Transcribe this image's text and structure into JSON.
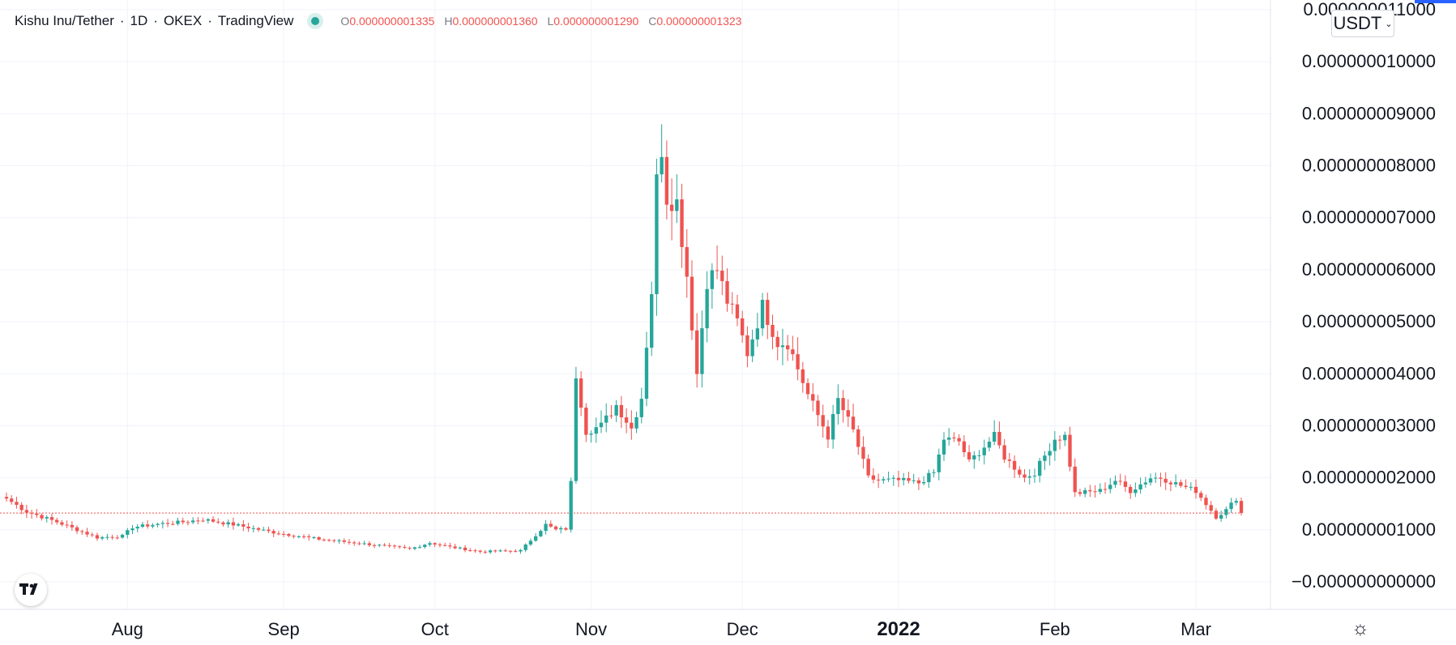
{
  "legend": {
    "symbol": "Kishu Inu/Tether",
    "interval": "1D",
    "exchange": "OKEX",
    "source": "TradingView",
    "ohlc": {
      "o_label": "O",
      "o_value": "0.000000001335",
      "h_label": "H",
      "h_value": "0.000000001360",
      "l_label": "L",
      "l_value": "0.000000001290",
      "c_label": "C",
      "c_value": "0.000000001323"
    }
  },
  "currency_selector": {
    "label": "USDT",
    "chevron": "⌄"
  },
  "icons": {
    "logo": "tradingview-logo-icon",
    "settings": "settings-gear-icon",
    "settings_glyph": "☼"
  },
  "colors": {
    "up": "#26a69a",
    "down": "#ef5350",
    "grid": "#f0f3fa",
    "axis_text": "#131722",
    "last_price_line": "#ef5350"
  },
  "chart_data": {
    "type": "candlestick",
    "symbol": "Kishu Inu/Tether",
    "interval": "1D",
    "exchange": "OKEX",
    "quote_currency": "USDT",
    "y_axis": {
      "ticks": [
        0.0,
        1e-09,
        2e-09,
        3e-09,
        4e-09,
        5e-09,
        6e-09,
        7e-09,
        8e-09,
        9e-09,
        1e-08,
        1.1e-08
      ],
      "tick_labels": [
        "−0.000000000000",
        "0.000000001000",
        "0.000000002000",
        "0.000000003000",
        "0.000000004000",
        "0.000000005000",
        "0.000000006000",
        "0.000000007000",
        "0.000000008000",
        "0.000000009000",
        "0.000000010000",
        "0.000000011000"
      ],
      "ylim": [
        -2e-10,
        1.105e-08
      ]
    },
    "x_axis": {
      "tick_labels": [
        "Aug",
        "Sep",
        "Oct",
        "Nov",
        "Dec",
        "2022",
        "Feb",
        "Mar"
      ],
      "tick_dates": [
        "2021-08-01",
        "2021-09-01",
        "2021-10-01",
        "2021-11-01",
        "2021-12-01",
        "2022-01-01",
        "2022-02-01",
        "2022-03-01"
      ],
      "bold_label": "2022",
      "first_date": "2021-07-08",
      "last_date": "2022-03-10"
    },
    "last_price": 1.323e-09,
    "grid": true,
    "anchors": [
      [
        "2021-07-08",
        1.6
      ],
      [
        "2021-07-12",
        1.35
      ],
      [
        "2021-07-18",
        1.15
      ],
      [
        "2021-07-26",
        0.85
      ],
      [
        "2021-07-31",
        0.88
      ],
      [
        "2021-08-02",
        1.05
      ],
      [
        "2021-08-08",
        1.12
      ],
      [
        "2021-08-12",
        1.15
      ],
      [
        "2021-08-16",
        1.2
      ],
      [
        "2021-08-22",
        1.1
      ],
      [
        "2021-08-30",
        0.95
      ],
      [
        "2021-09-08",
        0.82
      ],
      [
        "2021-09-20",
        0.7
      ],
      [
        "2021-09-26",
        0.63
      ],
      [
        "2021-09-30",
        0.75
      ],
      [
        "2021-10-04",
        0.67
      ],
      [
        "2021-10-10",
        0.58
      ],
      [
        "2021-10-18",
        0.6
      ],
      [
        "2021-10-20",
        0.8
      ],
      [
        "2021-10-23",
        1.1
      ],
      [
        "2021-10-25",
        1.0
      ],
      [
        "2021-10-27",
        1.02
      ],
      [
        "2021-10-28",
        1.9
      ],
      [
        "2021-10-29",
        3.99
      ],
      [
        "2021-10-31",
        2.9
      ],
      [
        "2021-11-03",
        3.0
      ],
      [
        "2021-11-06",
        3.4
      ],
      [
        "2021-11-09",
        2.95
      ],
      [
        "2021-11-11",
        3.55
      ],
      [
        "2021-11-13",
        5.6
      ],
      [
        "2021-11-14",
        7.7
      ],
      [
        "2021-11-15",
        8.35
      ],
      [
        "2021-11-16",
        7.4
      ],
      [
        "2021-11-18",
        7.3
      ],
      [
        "2021-11-20",
        5.9
      ],
      [
        "2021-11-22",
        4.0
      ],
      [
        "2021-11-24",
        5.8
      ],
      [
        "2021-11-26",
        6.0
      ],
      [
        "2021-11-28",
        5.4
      ],
      [
        "2021-11-30",
        5.0
      ],
      [
        "2021-12-02",
        4.4
      ],
      [
        "2021-12-05",
        5.3
      ],
      [
        "2021-12-08",
        4.6
      ],
      [
        "2021-12-10",
        4.6
      ],
      [
        "2021-12-14",
        3.6
      ],
      [
        "2021-12-18",
        2.8
      ],
      [
        "2021-12-20",
        3.5
      ],
      [
        "2021-12-23",
        2.9
      ],
      [
        "2021-12-26",
        2.0
      ],
      [
        "2021-12-28",
        1.95
      ],
      [
        "2022-01-01",
        1.95
      ],
      [
        "2022-01-05",
        1.9
      ],
      [
        "2022-01-08",
        2.1
      ],
      [
        "2022-01-10",
        2.75
      ],
      [
        "2022-01-13",
        2.7
      ],
      [
        "2022-01-15",
        2.3
      ],
      [
        "2022-01-20",
        2.8
      ],
      [
        "2022-01-22",
        2.4
      ],
      [
        "2022-01-26",
        2.0
      ],
      [
        "2022-01-28",
        2.1
      ],
      [
        "2022-02-01",
        2.75
      ],
      [
        "2022-02-03",
        2.8
      ],
      [
        "2022-02-05",
        1.7
      ],
      [
        "2022-02-10",
        1.75
      ],
      [
        "2022-02-13",
        1.95
      ],
      [
        "2022-02-16",
        1.75
      ],
      [
        "2022-02-20",
        2.0
      ],
      [
        "2022-02-22",
        2.0
      ],
      [
        "2022-02-26",
        1.85
      ],
      [
        "2022-03-01",
        1.75
      ],
      [
        "2022-03-03",
        1.5
      ],
      [
        "2022-03-05",
        1.25
      ],
      [
        "2022-03-07",
        1.38
      ],
      [
        "2022-03-09",
        1.6
      ],
      [
        "2022-03-10",
        1.323
      ]
    ],
    "anchor_unit": "1e-9 USDT"
  }
}
